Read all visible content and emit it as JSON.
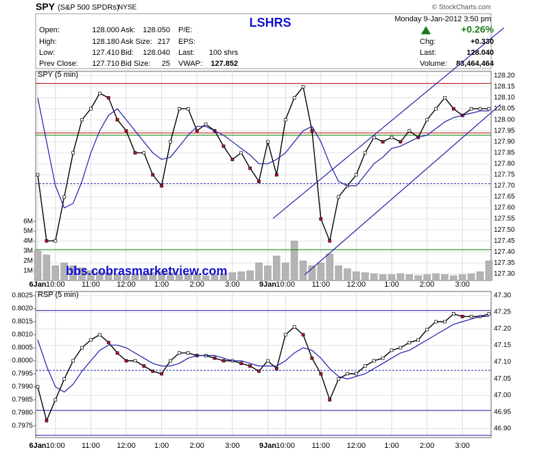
{
  "header": {
    "symbol": "SPY",
    "name": "(S&P 500 SPDRs)",
    "exchange": "NYSE",
    "title": "LSHRS",
    "datetime": "Monday  9-Jan-2012  3:50 pm",
    "credit": "© StockCharts.com",
    "change_pct": "+0.26%",
    "fields": [
      [
        {
          "label": "Open:",
          "value": "128.000"
        },
        {
          "label": "Ask:",
          "value": "128.050"
        },
        {
          "label": "P/E:"
        }
      ],
      [
        {
          "label": "High:",
          "value": "128.180"
        },
        {
          "label": "Ask Size:",
          "value": "217"
        },
        {
          "label": "EPS:"
        }
      ],
      [
        {
          "label": "Low:",
          "value": "127.410"
        },
        {
          "label": "Bid:",
          "value": "128.040"
        },
        {
          "label": "Last:",
          "value": "100 shrs"
        }
      ],
      [
        {
          "label": "Prev Close:",
          "value": "127.710"
        },
        {
          "label": "Bid Size:",
          "value": "25"
        },
        {
          "label": "VWAP:",
          "value": "127.852"
        }
      ]
    ],
    "right_fields": [
      {
        "label": "Chg:",
        "value": "+0.330"
      },
      {
        "label": "Last:",
        "value": "128.040"
      },
      {
        "label": "Volume:",
        "value": "83,464,464"
      }
    ]
  },
  "watermark": "bbs.cobrasmarketview.com",
  "chart_data": [
    {
      "type": "line",
      "panel_label": "SPY (5 min)",
      "categories": [
        "6Jan",
        null,
        "10:00",
        null,
        null,
        null,
        "11:00",
        null,
        null,
        null,
        "12:00",
        null,
        null,
        null,
        "1:00",
        null,
        null,
        null,
        "2:00",
        null,
        null,
        null,
        "3:00",
        null,
        null,
        null,
        "9Jan",
        null,
        "10:00",
        null,
        null,
        null,
        "11:00",
        null,
        null,
        null,
        "12:00",
        null,
        null,
        null,
        "1:00",
        null,
        null,
        null,
        "2:00",
        null,
        null,
        null,
        "3:00",
        null,
        null,
        null
      ],
      "ylim": [
        127.27,
        128.22
      ],
      "yticks": [
        {
          "value": 127.3,
          "label": "127.30"
        },
        {
          "value": 127.35,
          "label": "127.35"
        },
        {
          "value": 127.4,
          "label": "127.40"
        },
        {
          "value": 127.45,
          "label": "127.45"
        },
        {
          "value": 127.5,
          "label": "127.50"
        },
        {
          "value": 127.55,
          "label": "127.55"
        },
        {
          "value": 127.6,
          "label": "127.60"
        },
        {
          "value": 127.65,
          "label": "127.65"
        },
        {
          "value": 127.7,
          "label": "127.70"
        },
        {
          "value": 127.75,
          "label": "127.75"
        },
        {
          "value": 127.8,
          "label": "127.80"
        },
        {
          "value": 127.85,
          "label": "127.85"
        },
        {
          "value": 127.9,
          "label": "127.90"
        },
        {
          "value": 127.95,
          "label": "127.95"
        },
        {
          "value": 128,
          "label": "128.00"
        },
        {
          "value": 128.05,
          "label": "128.05"
        },
        {
          "value": 128.1,
          "label": "128.10"
        },
        {
          "value": 128.15,
          "label": "128.15"
        },
        {
          "value": 128.2,
          "label": "128.20"
        }
      ],
      "grid": true,
      "series": [
        {
          "color": "#000000",
          "width": 1.4,
          "values": [
            127.75,
            127.45,
            127.45,
            127.65,
            127.85,
            128.0,
            128.05,
            128.12,
            128.1,
            128.0,
            127.95,
            127.85,
            127.85,
            127.75,
            127.7,
            127.9,
            128.05,
            128.05,
            127.95,
            127.98,
            127.95,
            127.88,
            127.82,
            127.85,
            127.78,
            127.72,
            127.9,
            127.75,
            128.0,
            128.1,
            128.15,
            127.95,
            127.55,
            127.45,
            127.65,
            127.7,
            127.75,
            127.85,
            127.92,
            127.9,
            127.92,
            127.9,
            127.95,
            127.92,
            128.0,
            128.05,
            128.1,
            128.05,
            128.02,
            128.05,
            128.05,
            128.05
          ]
        },
        {
          "color": "#1c1ca8",
          "width": 1.2,
          "values": [
            128.1,
            127.9,
            127.7,
            127.6,
            127.62,
            127.72,
            127.85,
            127.95,
            128.02,
            128.05,
            128.0,
            127.95,
            127.9,
            127.85,
            127.82,
            127.83,
            127.88,
            127.93,
            127.97,
            127.97,
            127.95,
            127.93,
            127.9,
            127.87,
            127.84,
            127.8,
            127.8,
            127.82,
            127.85,
            127.9,
            127.95,
            127.97,
            127.9,
            127.8,
            127.72,
            127.7,
            127.7,
            127.75,
            127.8,
            127.83,
            127.87,
            127.88,
            127.9,
            127.92,
            127.93,
            127.96,
            127.99,
            128.01,
            128.02,
            128.03,
            128.04,
            128.04
          ]
        }
      ],
      "volume": {
        "color": "#b4b4b4",
        "vlim": [
          0,
          21200000
        ],
        "vticks": [
          {
            "value": 1000000,
            "label": "1M"
          },
          {
            "value": 2000000,
            "label": "2M"
          },
          {
            "value": 3000000,
            "label": "3M"
          },
          {
            "value": 4000000,
            "label": "4M"
          },
          {
            "value": 5000000,
            "label": "5M"
          },
          {
            "value": 6000000,
            "label": "6M"
          }
        ],
        "values": [
          3000000,
          2600000,
          1500000,
          1800000,
          1500000,
          1300000,
          1000000,
          900000,
          800000,
          700000,
          600000,
          700000,
          600000,
          800000,
          900000,
          800000,
          600000,
          700000,
          600000,
          500000,
          600000,
          700000,
          800000,
          900000,
          1000000,
          1800000,
          1500000,
          2500000,
          1800000,
          4000000,
          2000000,
          1500000,
          1800000,
          2700000,
          1500000,
          1200000,
          900000,
          800000,
          700000,
          600000,
          600000,
          700000,
          600000,
          500000,
          600000,
          700000,
          600000,
          500000,
          600000,
          700000,
          900000,
          2000000
        ]
      },
      "levels": [
        {
          "value": 128.165,
          "color": "#c00000"
        },
        {
          "value": 127.94,
          "color": "#c00000"
        },
        {
          "value": 127.93,
          "color": "#008000"
        },
        {
          "value": 127.71,
          "color": "#1c1ca8",
          "dashed": true
        },
        {
          "value": 127.41,
          "color": "#008000"
        }
      ],
      "trendlines": [
        {
          "x": [
            26.6,
            52.7
          ],
          "y": [
            127.552,
            128.418
          ],
          "color": "#1c1ca8"
        },
        {
          "x": [
            30.2,
            52.3
          ],
          "y": [
            127.297,
            128.069
          ],
          "color": "#1c1ca8"
        }
      ]
    },
    {
      "type": "line",
      "panel_label": "RSP (5 min)",
      "categories": [
        "6Jan",
        null,
        "10:00",
        null,
        null,
        null,
        "11:00",
        null,
        null,
        null,
        "12:00",
        null,
        null,
        null,
        "1:00",
        null,
        null,
        null,
        "2:00",
        null,
        null,
        null,
        "3:00",
        null,
        null,
        null,
        "9Jan",
        null,
        "10:00",
        null,
        null,
        null,
        "11:00",
        null,
        null,
        null,
        "12:00",
        null,
        null,
        null,
        "1:00",
        null,
        null,
        null,
        "2:00",
        null,
        null,
        null,
        "3:00",
        null,
        null,
        null
      ],
      "ylim": [
        0.79705,
        0.80266
      ],
      "yticks": [
        {
          "value": 0.7975,
          "label": "0.7975"
        },
        {
          "value": 0.798,
          "label": "0.7980"
        },
        {
          "value": 0.7985,
          "label": "0.7985"
        },
        {
          "value": 0.799,
          "label": "0.7990"
        },
        {
          "value": 0.7995,
          "label": "0.7995"
        },
        {
          "value": 0.8,
          "label": "0.8000"
        },
        {
          "value": 0.8005,
          "label": "0.8005"
        },
        {
          "value": 0.801,
          "label": "0.8010"
        },
        {
          "value": 0.8015,
          "label": "0.8015"
        },
        {
          "value": 0.802,
          "label": "0.8020"
        },
        {
          "value": 0.8025,
          "label": "0.8025"
        }
      ],
      "y2lim": [
        46.873,
        47.312
      ],
      "y2ticks": [
        {
          "value": 46.9,
          "label": "46.90"
        },
        {
          "value": 46.95,
          "label": "46.95"
        },
        {
          "value": 47,
          "label": "47.00"
        },
        {
          "value": 47.05,
          "label": "47.05"
        },
        {
          "value": 47.1,
          "label": "47.10"
        },
        {
          "value": 47.15,
          "label": "47.15"
        },
        {
          "value": 47.2,
          "label": "47.20"
        },
        {
          "value": 47.25,
          "label": "47.25"
        },
        {
          "value": 47.3,
          "label": "47.30"
        }
      ],
      "grid": true,
      "series": [
        {
          "color": "#000000",
          "width": 1.4,
          "values": [
            0.799,
            0.7977,
            0.7985,
            0.7993,
            0.8,
            0.8005,
            0.8008,
            0.801,
            0.8007,
            0.8003,
            0.8,
            0.8,
            0.7998,
            0.7996,
            0.7995,
            0.8,
            0.8003,
            0.8003,
            0.8002,
            0.8002,
            0.8001,
            0.8,
            0.8,
            0.7999,
            0.7998,
            0.7996,
            0.8,
            0.7997,
            0.801,
            0.8013,
            0.801,
            0.8001,
            0.7995,
            0.7985,
            0.7993,
            0.7995,
            0.7995,
            0.7998,
            0.8,
            0.8001,
            0.8004,
            0.8005,
            0.8007,
            0.8008,
            0.8012,
            0.8015,
            0.8015,
            0.8018,
            0.8017,
            0.8017,
            0.8017,
            0.8018
          ]
        },
        {
          "color": "#1c1ca8",
          "width": 1.2,
          "values": [
            0.8008,
            0.7998,
            0.799,
            0.7988,
            0.7991,
            0.7996,
            0.8,
            0.8004,
            0.8006,
            0.8006,
            0.8005,
            0.8003,
            0.8001,
            0.7999,
            0.7998,
            0.7998,
            0.7999,
            0.8001,
            0.8002,
            0.8002,
            0.8002,
            0.8001,
            0.8,
            0.8,
            0.7999,
            0.7998,
            0.7998,
            0.7998,
            0.8,
            0.8003,
            0.8005,
            0.8004,
            0.8001,
            0.7997,
            0.7994,
            0.7993,
            0.7994,
            0.7995,
            0.7997,
            0.7999,
            0.8001,
            0.8003,
            0.8004,
            0.8006,
            0.8008,
            0.801,
            0.8012,
            0.8014,
            0.8015,
            0.8016,
            0.8017,
            0.8017
          ]
        }
      ],
      "levels": [
        {
          "value": 47.255,
          "color": "#1c1ca8",
          "axis": "y2"
        },
        {
          "value": 47.075,
          "color": "#1c1ca8",
          "axis": "y2",
          "dashed": true
        },
        {
          "value": 46.955,
          "color": "#1c1ca8",
          "axis": "y2"
        },
        {
          "value": 46.88,
          "color": "#1c1ca8",
          "axis": "y2"
        }
      ]
    }
  ]
}
